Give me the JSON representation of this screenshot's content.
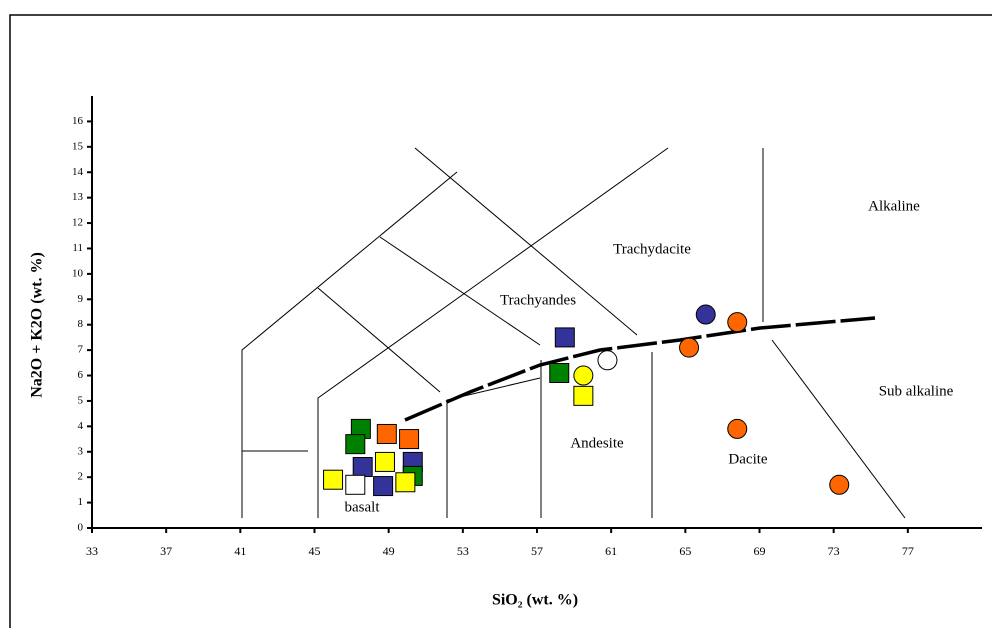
{
  "chart_data": {
    "type": "scatter",
    "x_label": "SiO₂ (wt. %)",
    "y_label": "Na2O + K2O (wt. %)",
    "xlim": [
      33,
      81
    ],
    "xticks": [
      33,
      37,
      41,
      45,
      49,
      53,
      57,
      61,
      65,
      69,
      73,
      77
    ],
    "ylim": [
      0,
      17
    ],
    "yticks": [
      0,
      1,
      2,
      3,
      4,
      5,
      6,
      7,
      8,
      9,
      10,
      11,
      12,
      13,
      14,
      15,
      16
    ],
    "annotations": [
      "Trachydacite",
      "Trachyandes",
      "Andesite",
      "Dacite",
      "basalt",
      "Alkaline",
      "Sub alkaline"
    ],
    "series": [
      {
        "marker": "square",
        "color": "#333399",
        "x": [
          58.5,
          47.6,
          48.7,
          50.3
        ],
        "y": [
          7.5,
          2.4,
          1.65,
          2.6
        ]
      },
      {
        "marker": "square",
        "color": "#008000",
        "x": [
          47.5,
          47.2,
          58.2,
          50.3
        ],
        "y": [
          3.9,
          3.3,
          6.1,
          2.05
        ]
      },
      {
        "marker": "square",
        "color": "#ff6600",
        "x": [
          48.9,
          50.1
        ],
        "y": [
          3.7,
          3.5
        ]
      },
      {
        "marker": "square",
        "color": "#ffff00",
        "x": [
          46.0,
          49.9,
          48.8,
          59.5
        ],
        "y": [
          1.9,
          1.8,
          2.6,
          5.2
        ]
      },
      {
        "marker": "square",
        "color": "#ffffff",
        "x": [
          47.2
        ],
        "y": [
          1.7
        ]
      },
      {
        "marker": "circle",
        "color": "#333399",
        "x": [
          66.1
        ],
        "y": [
          8.4
        ]
      },
      {
        "marker": "circle",
        "color": "#ff6600",
        "x": [
          67.8,
          65.2,
          67.8,
          73.3
        ],
        "y": [
          8.1,
          7.1,
          3.9,
          1.7
        ]
      },
      {
        "marker": "circle",
        "color": "#ffff00",
        "x": [
          59.5
        ],
        "y": [
          6.0
        ]
      },
      {
        "marker": "circle",
        "color": "#ffffff",
        "x": [
          60.8
        ],
        "y": [
          6.6
        ]
      }
    ]
  }
}
